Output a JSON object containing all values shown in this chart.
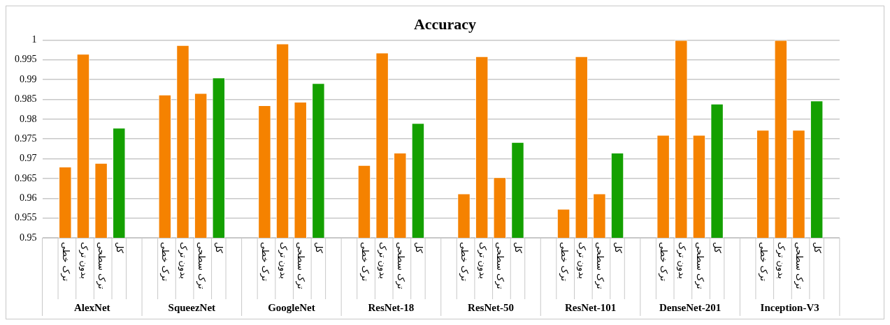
{
  "chart_data": {
    "type": "bar",
    "title": "Accuracy",
    "categories": [
      "AlexNet",
      "SqueezNet",
      "GoogleNet",
      "ResNet-18",
      "ResNet-50",
      "ResNet-101",
      "DenseNet-201",
      "Inception-V3"
    ],
    "series": [
      {
        "name": "ترک خطی",
        "color": "#f58200",
        "values": [
          0.968,
          0.9862,
          0.9835,
          0.9684,
          0.9612,
          0.9573,
          0.976,
          0.9773
        ]
      },
      {
        "name": "بدون ترک",
        "color": "#f58200",
        "values": [
          0.9965,
          0.9987,
          0.9991,
          0.9968,
          0.9959,
          0.9959,
          1,
          1
        ]
      },
      {
        "name": "ترک سطحی",
        "color": "#f58200",
        "values": [
          0.9689,
          0.9866,
          0.9844,
          0.9715,
          0.9653,
          0.9612,
          0.976,
          0.9773
        ]
      },
      {
        "name": "کل",
        "color": "#14a000",
        "values": [
          0.9778,
          0.9905,
          0.9891,
          0.979,
          0.9742,
          0.9715,
          0.9839,
          0.9847
        ]
      }
    ],
    "ylim": [
      0.95,
      1
    ],
    "yticks": [
      0.95,
      0.955,
      0.96,
      0.965,
      0.97,
      0.975,
      0.98,
      0.985,
      0.99,
      0.995,
      1
    ],
    "grid": "y",
    "legend": false
  }
}
